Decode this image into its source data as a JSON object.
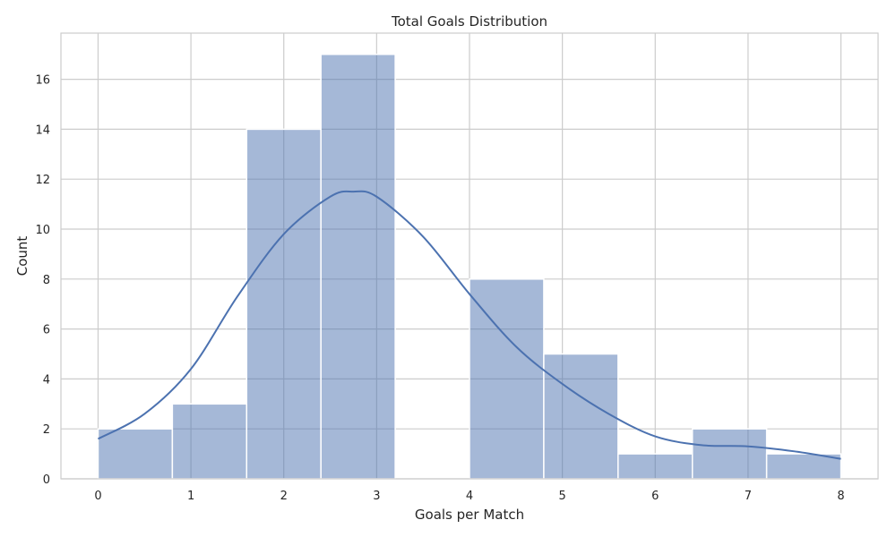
{
  "chart_data": {
    "type": "bar",
    "title": "Total Goals Distribution",
    "xlabel": "Goals per Match",
    "ylabel": "Count",
    "xlim": [
      -0.4,
      8.4
    ],
    "ylim": [
      0,
      17.85
    ],
    "xticks": [
      0,
      1,
      2,
      3,
      4,
      5,
      6,
      7,
      8
    ],
    "yticks": [
      0,
      2,
      4,
      6,
      8,
      10,
      12,
      14,
      16
    ],
    "grid": true,
    "bins": [
      {
        "start": 0.0,
        "end": 0.8,
        "count": 2
      },
      {
        "start": 0.8,
        "end": 1.6,
        "count": 3
      },
      {
        "start": 1.6,
        "end": 2.4,
        "count": 14
      },
      {
        "start": 2.4,
        "end": 3.2,
        "count": 17
      },
      {
        "start": 3.2,
        "end": 4.0,
        "count": 0
      },
      {
        "start": 4.0,
        "end": 4.8,
        "count": 8
      },
      {
        "start": 4.8,
        "end": 5.6,
        "count": 5
      },
      {
        "start": 5.6,
        "end": 6.4,
        "count": 1
      },
      {
        "start": 6.4,
        "end": 7.2,
        "count": 2
      },
      {
        "start": 7.2,
        "end": 8.0,
        "count": 1
      }
    ],
    "kde_curve": {
      "x": [
        0,
        0.5,
        1.0,
        1.5,
        2.0,
        2.5,
        2.75,
        3.0,
        3.5,
        4.0,
        4.5,
        5.0,
        5.5,
        6.0,
        6.5,
        7.0,
        7.5,
        8.0
      ],
      "y": [
        1.6,
        2.6,
        4.4,
        7.3,
        9.8,
        11.3,
        11.5,
        11.3,
        9.7,
        7.4,
        5.3,
        3.8,
        2.6,
        1.7,
        1.35,
        1.3,
        1.1,
        0.8
      ]
    },
    "colors": {
      "bar": "#4c72b0",
      "line": "#4c72b0",
      "grid": "#cccccc"
    }
  }
}
